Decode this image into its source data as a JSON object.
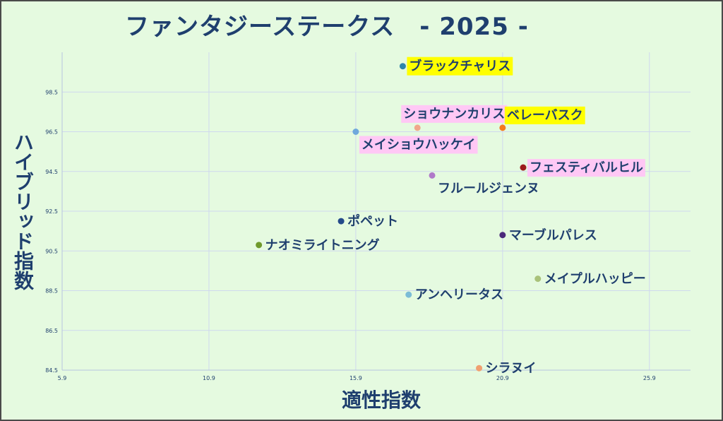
{
  "title": "ファンタジーステークス　- 2025 -",
  "chart_data": {
    "type": "scatter",
    "title": "ファンタジーステークス　- 2025 -",
    "xlabel": "適性指数",
    "ylabel": "ハイブリッド指数",
    "xlim": [
      5.9,
      27.3
    ],
    "ylim": [
      84.5,
      100.5
    ],
    "x_ticks": [
      "5.9",
      "10.9",
      "15.9",
      "20.9",
      "25.9"
    ],
    "y_ticks": [
      "84.5",
      "86.5",
      "88.5",
      "90.5",
      "92.5",
      "94.5",
      "96.5",
      "98.5"
    ],
    "grid": true,
    "points": [
      {
        "name": "ブラックチャリス",
        "x": 17.5,
        "y": 99.8,
        "color": "#2e86ab",
        "highlight": "#ffff00",
        "label_pos": "right"
      },
      {
        "name": "ショウナンカリス",
        "x": 18.0,
        "y": 96.7,
        "color": "#f0a88a",
        "highlight": "#ffc8f5",
        "label_pos": "above-left"
      },
      {
        "name": "ベレーバスク",
        "x": 20.9,
        "y": 96.7,
        "color": "#f47a20",
        "highlight": "#ffff00",
        "label_pos": "above-right"
      },
      {
        "name": "メイショウハッケイ",
        "x": 15.9,
        "y": 96.5,
        "color": "#6fa8dc",
        "highlight": "#ffc8f5",
        "label_pos": "below-right"
      },
      {
        "name": "フェスティバルヒル",
        "x": 21.6,
        "y": 94.7,
        "color": "#9c1c1c",
        "highlight": "#ffc8f5",
        "label_pos": "right"
      },
      {
        "name": "フルールジェンヌ",
        "x": 18.5,
        "y": 94.3,
        "color": "#b079c9",
        "highlight": "",
        "label_pos": "below-right"
      },
      {
        "name": "ポペット",
        "x": 15.4,
        "y": 92.0,
        "color": "#244a8a",
        "highlight": "",
        "label_pos": "right"
      },
      {
        "name": "マーブルパレス",
        "x": 20.9,
        "y": 91.3,
        "color": "#4b2a7a",
        "highlight": "",
        "label_pos": "right"
      },
      {
        "name": "ナオミライトニング",
        "x": 12.6,
        "y": 90.8,
        "color": "#6f9a2b",
        "highlight": "",
        "label_pos": "right"
      },
      {
        "name": "メイプルハッピー",
        "x": 22.1,
        "y": 89.1,
        "color": "#a9c27a",
        "highlight": "",
        "label_pos": "right"
      },
      {
        "name": "アンヘリータス",
        "x": 17.7,
        "y": 88.3,
        "color": "#7bbcd6",
        "highlight": "",
        "label_pos": "right"
      },
      {
        "name": "シラヌイ",
        "x": 20.1,
        "y": 84.6,
        "color": "#f0a070",
        "highlight": "",
        "label_pos": "right"
      }
    ]
  }
}
